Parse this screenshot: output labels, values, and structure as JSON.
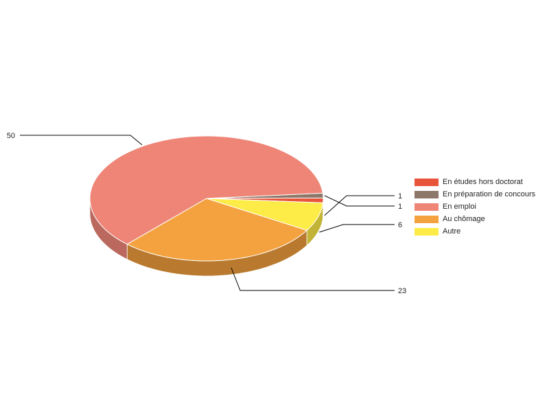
{
  "chart_data": {
    "type": "pie",
    "title": "",
    "legend_position": "right",
    "slices": [
      {
        "label": "En études hors doctorat",
        "value": 1,
        "color": "#e8553a",
        "side_color": "#b8442e"
      },
      {
        "label": "En préparation de concours",
        "value": 1,
        "color": "#8d7769",
        "side_color": "#6e5d52"
      },
      {
        "label": "En emploi",
        "value": 50,
        "color": "#ee8577",
        "side_color": "#bb695e"
      },
      {
        "label": "Au chômage",
        "value": 23,
        "color": "#f4a23f",
        "side_color": "#b97a2f"
      },
      {
        "label": "Autre",
        "value": 6,
        "color": "#fdeb47",
        "side_color": "#c2b436"
      }
    ]
  }
}
